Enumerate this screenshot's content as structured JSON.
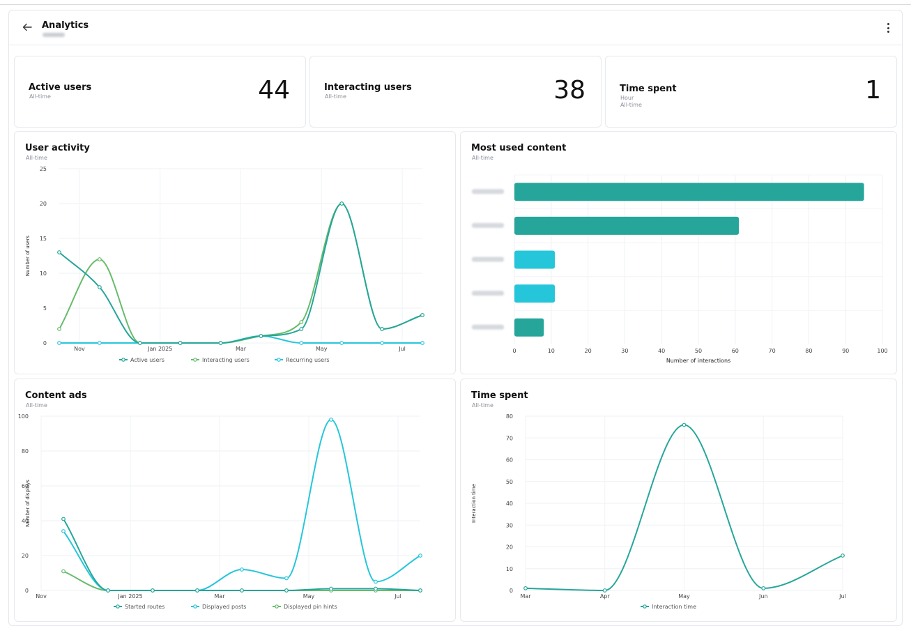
{
  "header": {
    "back_icon": "arrow-left-icon",
    "title": "Analytics",
    "menu_icon": "more-vertical-icon"
  },
  "kpis": [
    {
      "label": "Active users",
      "sub": "All-time",
      "value": "44"
    },
    {
      "label": "Interacting users",
      "sub": "All-time",
      "value": "38"
    },
    {
      "label": "Time spent",
      "unit": "Hour",
      "sub": "All-time",
      "value": "1"
    }
  ],
  "colors": {
    "teal": "#26a69a",
    "green": "#66bb6a",
    "cyan": "#26c6da"
  },
  "chart_data": [
    {
      "id": "user_activity",
      "type": "line",
      "title": "User activity",
      "subtitle": "All-time",
      "ylabel": "Number of users",
      "xlabel": "",
      "ylim": [
        0,
        25
      ],
      "yticks": [
        "0",
        "5",
        "10",
        "15",
        "20",
        "25"
      ],
      "x_tick_labels": [
        "Nov",
        "Jan 2025",
        "Mar",
        "May",
        "Jul"
      ],
      "x_tick_pos": [
        0.5,
        2.5,
        4.5,
        6.5,
        8.5
      ],
      "x": [
        0,
        1,
        2,
        3,
        4,
        5,
        6,
        7,
        8,
        9
      ],
      "xlim": [
        0,
        9
      ],
      "series": [
        {
          "name": "Active users",
          "color": "#26a69a",
          "values": [
            13,
            8,
            0,
            0,
            0,
            1,
            2,
            20,
            2,
            4
          ]
        },
        {
          "name": "Interacting users",
          "color": "#66bb6a",
          "values": [
            2,
            12,
            0,
            0,
            0,
            1,
            3,
            20,
            2,
            4
          ]
        },
        {
          "name": "Recurring users",
          "color": "#26c6da",
          "values": [
            0,
            0,
            0,
            0,
            0,
            1,
            0,
            0,
            0,
            0
          ]
        }
      ]
    },
    {
      "id": "most_used_content",
      "type": "bar",
      "orientation": "horizontal",
      "title": "Most used content",
      "subtitle": "All-time",
      "xlabel": "Number of interactions",
      "xlim": [
        0,
        100
      ],
      "xticks": [
        "0",
        "10",
        "20",
        "30",
        "40",
        "50",
        "60",
        "70",
        "80",
        "90",
        "100"
      ],
      "values": [
        95,
        61,
        11,
        11,
        8
      ],
      "bar_colors": [
        "#26a69a",
        "#26a69a",
        "#26c6da",
        "#26c6da",
        "#26a69a"
      ]
    },
    {
      "id": "content_ads",
      "type": "line",
      "title": "Content ads",
      "subtitle": "All-time",
      "ylabel": "Number of displays",
      "xlabel": "",
      "ylim": [
        0,
        100
      ],
      "yticks": [
        "0",
        "20",
        "40",
        "60",
        "80",
        "100"
      ],
      "x_tick_labels": [
        "Nov",
        "Jan 2025",
        "Mar",
        "May",
        "Jul"
      ],
      "x_tick_pos": [
        0,
        2,
        4,
        6,
        8
      ],
      "x": [
        0.5,
        1.5,
        2.5,
        3.5,
        4.5,
        5.5,
        6.5,
        7.5,
        8.5
      ],
      "xlim": [
        0,
        8.5
      ],
      "series": [
        {
          "name": "Started routes",
          "color": "#26a69a",
          "values": [
            41,
            0,
            0,
            0,
            0,
            0,
            1,
            1,
            0
          ]
        },
        {
          "name": "Displayed posts",
          "color": "#26c6da",
          "values": [
            34,
            0,
            0,
            0,
            12,
            7,
            98,
            5,
            20
          ]
        },
        {
          "name": "Displayed pin hints",
          "color": "#66bb6a",
          "values": [
            11,
            0,
            0,
            0,
            0,
            0,
            0,
            0,
            0
          ]
        }
      ]
    },
    {
      "id": "time_spent",
      "type": "line",
      "title": "Time spent",
      "subtitle": "All-time",
      "ylabel": "Interaction time",
      "xlabel": "",
      "ylim": [
        0,
        80
      ],
      "yticks": [
        "0",
        "10",
        "20",
        "30",
        "40",
        "50",
        "60",
        "70",
        "80"
      ],
      "x_tick_labels": [
        "Mar",
        "Apr",
        "May",
        "Jun",
        "Jul"
      ],
      "x_tick_pos": [
        0,
        1,
        2,
        3,
        4
      ],
      "x": [
        0,
        1,
        2,
        3,
        4
      ],
      "xlim": [
        0,
        4
      ],
      "series": [
        {
          "name": "Interaction time",
          "color": "#26a69a",
          "values": [
            1,
            0,
            76,
            1,
            16
          ]
        }
      ]
    }
  ]
}
